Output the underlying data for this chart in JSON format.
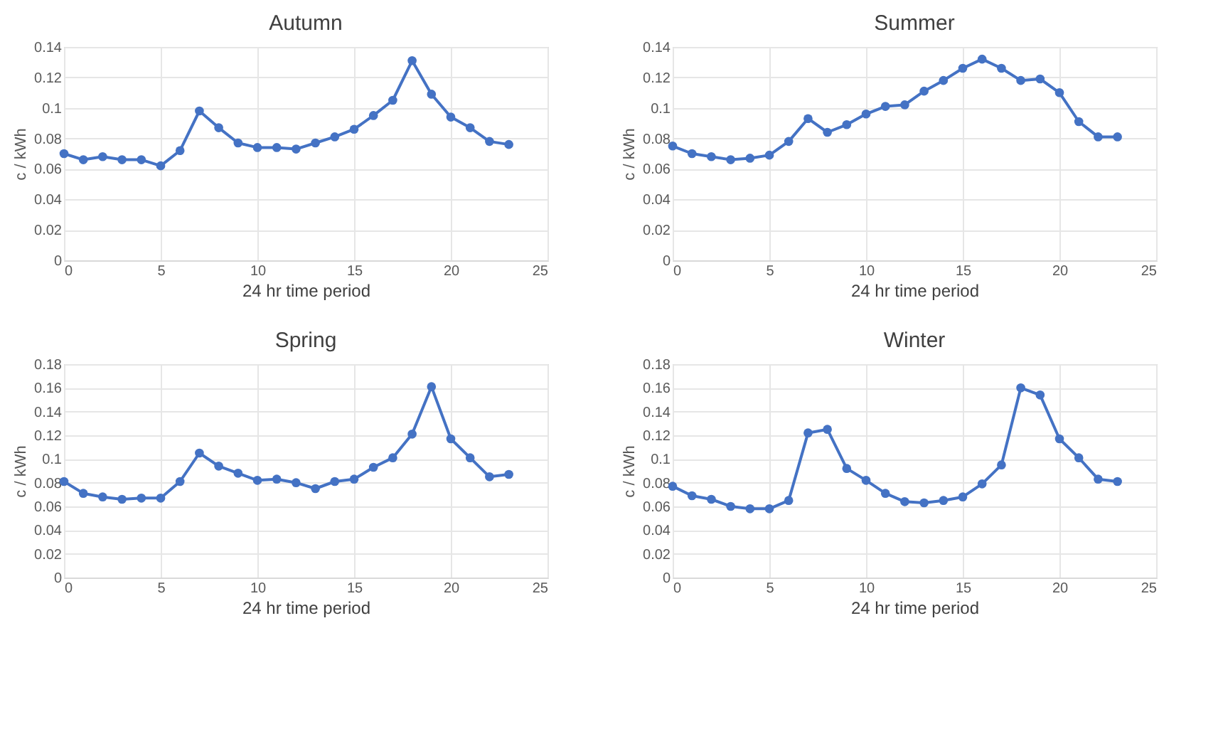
{
  "chart_data": [
    {
      "type": "line",
      "title": "Autumn",
      "xlabel": "24 hr time period",
      "ylabel": "c / kWh",
      "color": "#4472c4",
      "marker": "circle",
      "grid": true,
      "xlim": [
        0,
        25
      ],
      "xticks": [
        0,
        5,
        10,
        15,
        20,
        25
      ],
      "ylim": [
        0,
        0.14
      ],
      "yticks": [
        0,
        0.02,
        0.04,
        0.06,
        0.08,
        0.1,
        0.12,
        0.14
      ],
      "x": [
        0,
        1,
        2,
        3,
        4,
        5,
        6,
        7,
        8,
        9,
        10,
        11,
        12,
        13,
        14,
        15,
        16,
        17,
        18,
        19,
        20,
        21,
        22,
        23
      ],
      "values": [
        0.07,
        0.066,
        0.068,
        0.066,
        0.066,
        0.062,
        0.072,
        0.098,
        0.087,
        0.077,
        0.074,
        0.074,
        0.073,
        0.077,
        0.081,
        0.086,
        0.095,
        0.105,
        0.131,
        0.109,
        0.094,
        0.087,
        0.078,
        0.076
      ]
    },
    {
      "type": "line",
      "title": "Summer",
      "xlabel": "24 hr time period",
      "ylabel": "c / kWh",
      "color": "#4472c4",
      "marker": "circle",
      "grid": true,
      "xlim": [
        0,
        25
      ],
      "xticks": [
        0,
        5,
        10,
        15,
        20,
        25
      ],
      "ylim": [
        0,
        0.14
      ],
      "yticks": [
        0,
        0.02,
        0.04,
        0.06,
        0.08,
        0.1,
        0.12,
        0.14
      ],
      "x": [
        0,
        1,
        2,
        3,
        4,
        5,
        6,
        7,
        8,
        9,
        10,
        11,
        12,
        13,
        14,
        15,
        16,
        17,
        18,
        19,
        20,
        21,
        22,
        23
      ],
      "values": [
        0.075,
        0.07,
        0.068,
        0.066,
        0.067,
        0.069,
        0.078,
        0.093,
        0.084,
        0.089,
        0.096,
        0.101,
        0.102,
        0.111,
        0.118,
        0.126,
        0.132,
        0.126,
        0.118,
        0.119,
        0.11,
        0.091,
        0.081,
        0.081
      ]
    },
    {
      "type": "line",
      "title": "Spring",
      "xlabel": "24 hr time period",
      "ylabel": "c / kWh",
      "color": "#4472c4",
      "marker": "circle",
      "grid": true,
      "xlim": [
        0,
        25
      ],
      "xticks": [
        0,
        5,
        10,
        15,
        20,
        25
      ],
      "ylim": [
        0,
        0.18
      ],
      "yticks": [
        0,
        0.02,
        0.04,
        0.06,
        0.08,
        0.1,
        0.12,
        0.14,
        0.16,
        0.18
      ],
      "x": [
        0,
        1,
        2,
        3,
        4,
        5,
        6,
        7,
        8,
        9,
        10,
        11,
        12,
        13,
        14,
        15,
        16,
        17,
        18,
        19,
        20,
        21,
        22,
        23
      ],
      "values": [
        0.081,
        0.071,
        0.068,
        0.066,
        0.067,
        0.067,
        0.081,
        0.105,
        0.094,
        0.088,
        0.082,
        0.083,
        0.08,
        0.075,
        0.081,
        0.083,
        0.093,
        0.101,
        0.121,
        0.161,
        0.117,
        0.101,
        0.085,
        0.087
      ]
    },
    {
      "type": "line",
      "title": "Winter",
      "xlabel": "24 hr time period",
      "ylabel": "c / kWh",
      "color": "#4472c4",
      "marker": "circle",
      "grid": true,
      "xlim": [
        0,
        25
      ],
      "xticks": [
        0,
        5,
        10,
        15,
        20,
        25
      ],
      "ylim": [
        0,
        0.18
      ],
      "yticks": [
        0,
        0.02,
        0.04,
        0.06,
        0.08,
        0.1,
        0.12,
        0.14,
        0.16,
        0.18
      ],
      "x": [
        0,
        1,
        2,
        3,
        4,
        5,
        6,
        7,
        8,
        9,
        10,
        11,
        12,
        13,
        14,
        15,
        16,
        17,
        18,
        19,
        20,
        21,
        22,
        23
      ],
      "values": [
        0.077,
        0.069,
        0.066,
        0.06,
        0.058,
        0.058,
        0.065,
        0.122,
        0.125,
        0.092,
        0.082,
        0.071,
        0.064,
        0.063,
        0.065,
        0.068,
        0.079,
        0.095,
        0.16,
        0.154,
        0.117,
        0.101,
        0.083,
        0.081
      ]
    }
  ]
}
